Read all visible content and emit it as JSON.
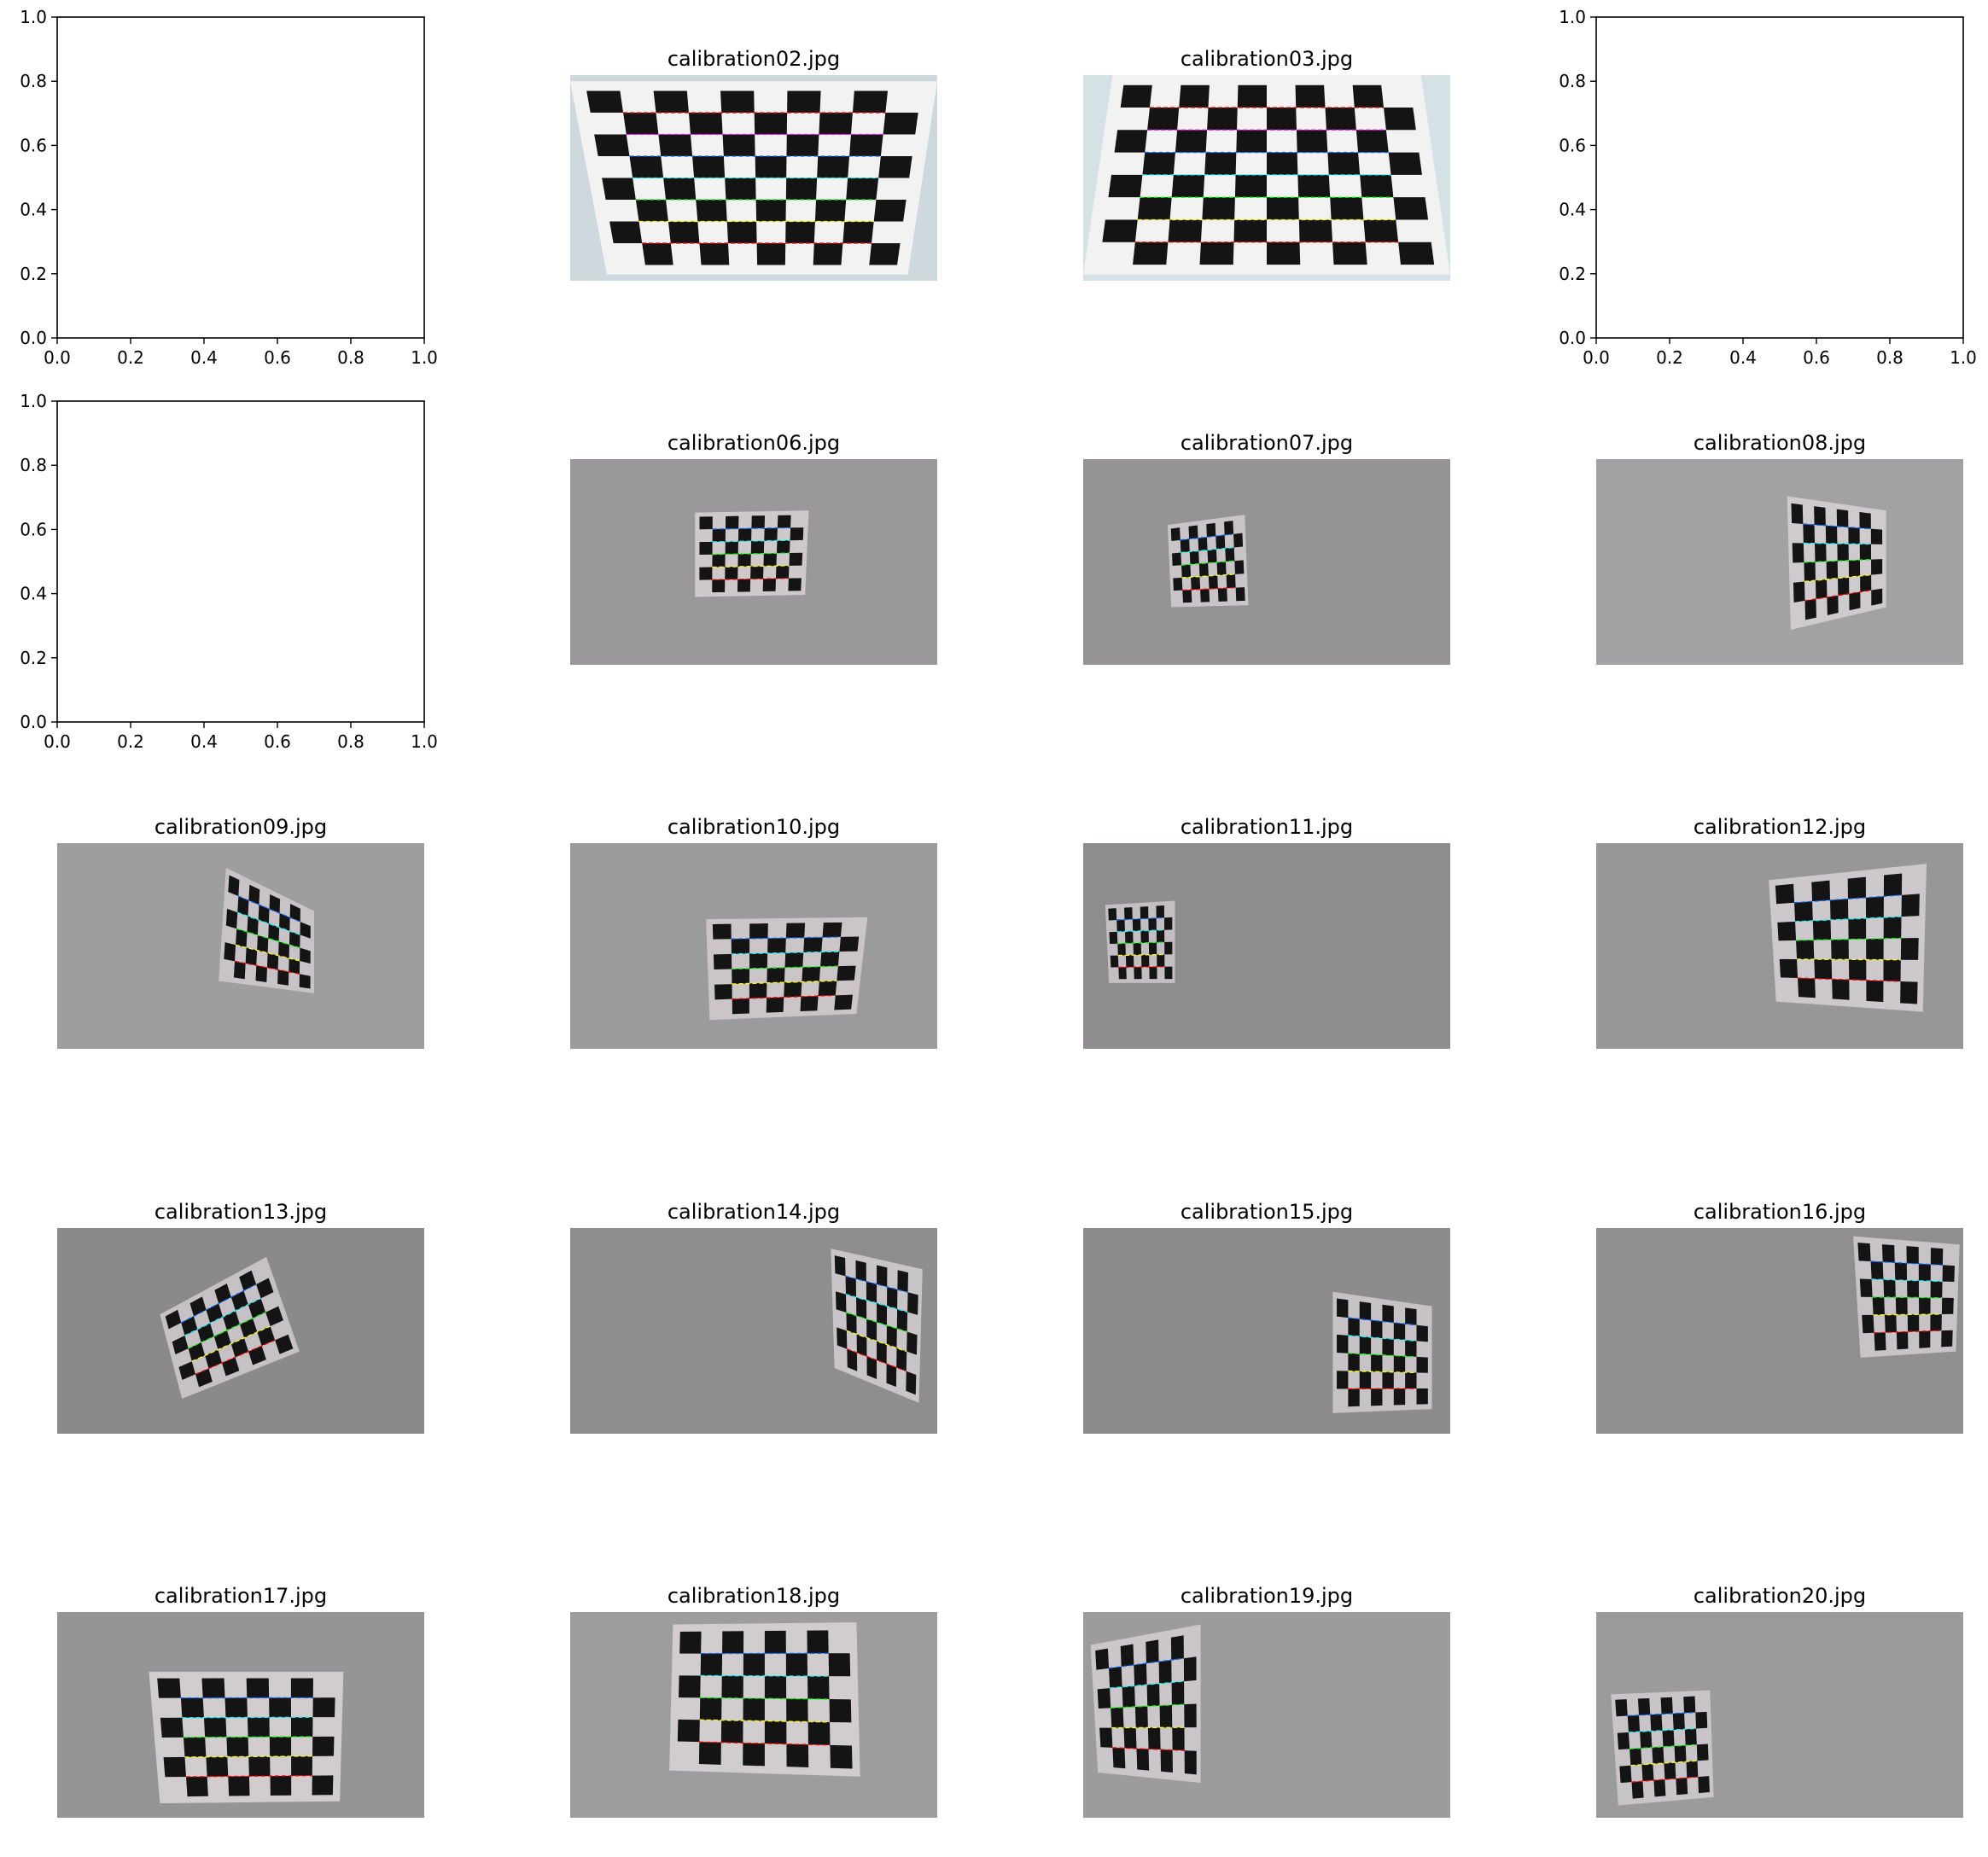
{
  "figure": {
    "rows": 5,
    "cols": 4,
    "background": "#ffffff",
    "empty_axes_ticks": [
      "0.0",
      "0.2",
      "0.4",
      "0.6",
      "0.8",
      "1.0"
    ],
    "line_colors": [
      "#ff0000",
      "#ffff00",
      "#00ff00",
      "#00ffff",
      "#0066ff",
      "#ff00ff"
    ],
    "panels": [
      {
        "kind": "empty-axes"
      },
      {
        "kind": "image",
        "title": "calibration02.jpg",
        "scene": {
          "bg": "#cfd8dc",
          "paper": "#f2f2f2",
          "corners": [
            [
              0.0,
              0.03
            ],
            [
              1.0,
              0.03
            ],
            [
              0.92,
              0.97
            ],
            [
              0.1,
              0.97
            ]
          ],
          "rows": 8,
          "cols": 10,
          "lines": true
        }
      },
      {
        "kind": "image",
        "title": "calibration03.jpg",
        "scene": {
          "bg": "#d4e2e6",
          "paper": "#f2f2f2",
          "corners": [
            [
              0.08,
              0.0
            ],
            [
              0.92,
              0.0
            ],
            [
              1.0,
              0.97
            ],
            [
              0.0,
              0.97
            ]
          ],
          "rows": 8,
          "cols": 10,
          "lines": true
        }
      },
      {
        "kind": "empty-axes"
      },
      {
        "kind": "empty-axes"
      },
      {
        "kind": "image",
        "title": "calibration06.jpg",
        "scene": {
          "bg": "#9a989a",
          "paper": "#cfc9cc",
          "corners": [
            [
              0.34,
              0.26
            ],
            [
              0.65,
              0.25
            ],
            [
              0.64,
              0.66
            ],
            [
              0.34,
              0.67
            ]
          ],
          "rows": 6,
          "cols": 8,
          "lines": true
        }
      },
      {
        "kind": "image",
        "title": "calibration07.jpg",
        "scene": {
          "bg": "#959394",
          "paper": "#c9c4c7",
          "corners": [
            [
              0.23,
              0.32
            ],
            [
              0.44,
              0.27
            ],
            [
              0.45,
              0.71
            ],
            [
              0.24,
              0.72
            ]
          ],
          "rows": 6,
          "cols": 8,
          "lines": true
        }
      },
      {
        "kind": "image",
        "title": "calibration08.jpg",
        "scene": {
          "bg": "#a2a1a3",
          "paper": "#cfcacd",
          "corners": [
            [
              0.52,
              0.18
            ],
            [
              0.79,
              0.25
            ],
            [
              0.79,
              0.72
            ],
            [
              0.53,
              0.83
            ]
          ],
          "rows": 6,
          "cols": 8,
          "lines": true
        }
      },
      {
        "kind": "image",
        "title": "calibration09.jpg",
        "scene": {
          "bg": "#9e9d9f",
          "paper": "#c8c3c6",
          "corners": [
            [
              0.46,
              0.12
            ],
            [
              0.7,
              0.33
            ],
            [
              0.7,
              0.73
            ],
            [
              0.44,
              0.67
            ]
          ],
          "rows": 6,
          "cols": 8,
          "lines": true
        }
      },
      {
        "kind": "image",
        "title": "calibration10.jpg",
        "scene": {
          "bg": "#9b9a9c",
          "paper": "#cbc5c8",
          "corners": [
            [
              0.37,
              0.37
            ],
            [
              0.81,
              0.36
            ],
            [
              0.78,
              0.83
            ],
            [
              0.38,
              0.86
            ]
          ],
          "rows": 6,
          "cols": 8,
          "lines": true
        }
      },
      {
        "kind": "image",
        "title": "calibration11.jpg",
        "scene": {
          "bg": "#8e8c8e",
          "paper": "#c3bec1",
          "corners": [
            [
              0.06,
              0.3
            ],
            [
              0.25,
              0.28
            ],
            [
              0.25,
              0.68
            ],
            [
              0.07,
              0.68
            ]
          ],
          "rows": 6,
          "cols": 8,
          "lines": true
        }
      },
      {
        "kind": "image",
        "title": "calibration12.jpg",
        "scene": {
          "bg": "#979698",
          "paper": "#cdc8cb",
          "corners": [
            [
              0.47,
              0.18
            ],
            [
              0.9,
              0.1
            ],
            [
              0.89,
              0.82
            ],
            [
              0.49,
              0.77
            ]
          ],
          "rows": 6,
          "cols": 8,
          "lines": true
        }
      },
      {
        "kind": "image",
        "title": "calibration13.jpg",
        "scene": {
          "bg": "#8a898b",
          "paper": "#c6c1c4",
          "corners": [
            [
              0.28,
              0.42
            ],
            [
              0.57,
              0.14
            ],
            [
              0.66,
              0.6
            ],
            [
              0.34,
              0.83
            ]
          ],
          "rows": 6,
          "cols": 8,
          "lines": true
        }
      },
      {
        "kind": "image",
        "title": "calibration14.jpg",
        "scene": {
          "bg": "#8e8d8f",
          "paper": "#c9c4c7",
          "corners": [
            [
              0.71,
              0.1
            ],
            [
              0.96,
              0.2
            ],
            [
              0.95,
              0.85
            ],
            [
              0.72,
              0.68
            ]
          ],
          "rows": 6,
          "cols": 8,
          "lines": true
        }
      },
      {
        "kind": "image",
        "title": "calibration15.jpg",
        "scene": {
          "bg": "#8c8b8d",
          "paper": "#c7c2c5",
          "corners": [
            [
              0.68,
              0.31
            ],
            [
              0.95,
              0.38
            ],
            [
              0.95,
              0.88
            ],
            [
              0.68,
              0.9
            ]
          ],
          "rows": 6,
          "cols": 8,
          "lines": true
        }
      },
      {
        "kind": "image",
        "title": "calibration16.jpg",
        "scene": {
          "bg": "#8f8e90",
          "paper": "#c8c3c6",
          "corners": [
            [
              0.7,
              0.04
            ],
            [
              0.99,
              0.08
            ],
            [
              0.98,
              0.6
            ],
            [
              0.72,
              0.63
            ]
          ],
          "rows": 6,
          "cols": 8,
          "lines": true
        }
      },
      {
        "kind": "image",
        "title": "calibration17.jpg",
        "scene": {
          "bg": "#959496",
          "paper": "#d1ccce",
          "corners": [
            [
              0.25,
              0.29
            ],
            [
              0.78,
              0.29
            ],
            [
              0.77,
              0.92
            ],
            [
              0.28,
              0.93
            ]
          ],
          "rows": 6,
          "cols": 8,
          "lines": true
        }
      },
      {
        "kind": "image",
        "title": "calibration18.jpg",
        "scene": {
          "bg": "#9d9c9e",
          "paper": "#d1ccce",
          "corners": [
            [
              0.28,
              0.06
            ],
            [
              0.78,
              0.05
            ],
            [
              0.79,
              0.8
            ],
            [
              0.27,
              0.77
            ]
          ],
          "rows": 6,
          "cols": 8,
          "lines": true
        }
      },
      {
        "kind": "image",
        "title": "calibration19.jpg",
        "scene": {
          "bg": "#9c9b9d",
          "paper": "#cbc6c9",
          "corners": [
            [
              0.02,
              0.16
            ],
            [
              0.32,
              0.06
            ],
            [
              0.32,
              0.83
            ],
            [
              0.04,
              0.78
            ]
          ],
          "rows": 6,
          "cols": 8,
          "lines": true
        }
      },
      {
        "kind": "image",
        "title": "calibration20.jpg",
        "scene": {
          "bg": "#9b9a9c",
          "paper": "#c9c4c7",
          "corners": [
            [
              0.04,
              0.4
            ],
            [
              0.31,
              0.38
            ],
            [
              0.32,
              0.9
            ],
            [
              0.06,
              0.94
            ]
          ],
          "rows": 6,
          "cols": 8,
          "lines": true
        }
      }
    ]
  }
}
